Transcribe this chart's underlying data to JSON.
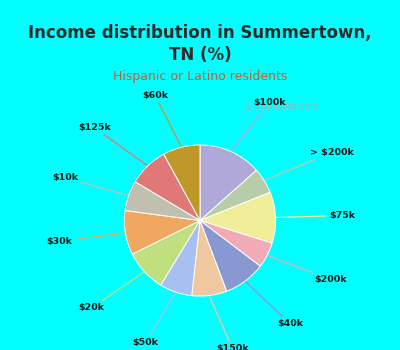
{
  "title": "Income distribution in Summertown,\nTN (%)",
  "subtitle": "Hispanic or Latino residents",
  "watermark": "ⓘ City-Data.com",
  "labels": [
    "$100k",
    "> $200k",
    "$75k",
    "$200k",
    "$40k",
    "$150k",
    "$50k",
    "$20k",
    "$30k",
    "$10k",
    "$125k",
    "$60k"
  ],
  "sizes": [
    13.5,
    5.5,
    11.0,
    5.5,
    9.0,
    7.5,
    7.0,
    9.0,
    9.5,
    6.5,
    8.5,
    8.0
  ],
  "colors": [
    "#b0a8d8",
    "#b8ccaa",
    "#f0ee98",
    "#f0aab8",
    "#8898d0",
    "#f0c8a0",
    "#a8c0f0",
    "#c0e080",
    "#f0a860",
    "#c0c0b0",
    "#e07878",
    "#c0982a"
  ],
  "startangle": 90,
  "bg_cyan": "#00ffff",
  "bg_chart": "#e0f5ee",
  "title_color": "#2a2a2a",
  "subtitle_color": "#c06030",
  "label_color": "#1a1a1a",
  "title_fontsize": 12,
  "subtitle_fontsize": 9
}
